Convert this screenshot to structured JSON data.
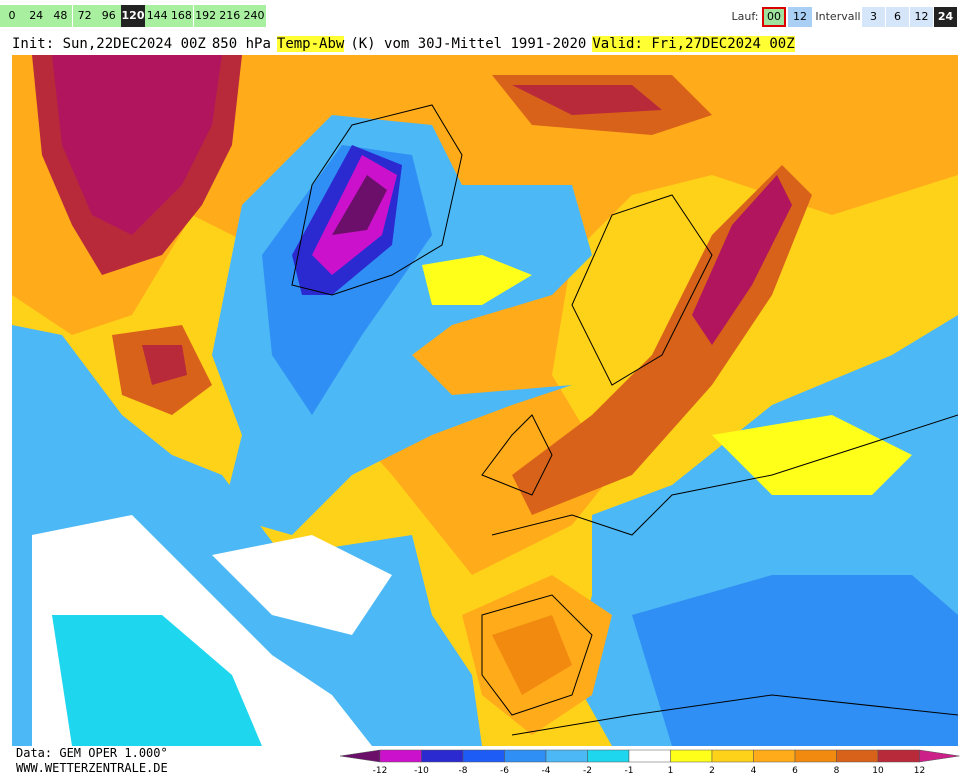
{
  "nav": {
    "hours": [
      "0",
      "24",
      "48",
      "72",
      "96",
      "120",
      "144",
      "168",
      "192",
      "216",
      "240"
    ],
    "selected_hour": 5
  },
  "run": {
    "label": "Lauf:",
    "options": [
      "00",
      "12"
    ],
    "selected": 0
  },
  "interval": {
    "label": "Intervall",
    "options": [
      "3",
      "6",
      "12",
      "24"
    ],
    "selected": 3
  },
  "header": {
    "init": "Init: Sun,22DEC2024 00Z",
    "level": "850 hPa",
    "variable": "Temp-Abw",
    "reference": "(K) vom 30J-Mittel 1991-2020",
    "valid": "Valid: Fri,27DEC2024 00Z"
  },
  "footer": {
    "data": "Data: GEM OPER 1.000°",
    "site": "WWW.WETTERZENTRALE.DE"
  },
  "legend": {
    "ticks": [
      "-12",
      "-10",
      "-8",
      "-6",
      "-4",
      "-2",
      "-1",
      "1",
      "2",
      "4",
      "6",
      "8",
      "10",
      "12"
    ],
    "colors": [
      "#6b0f6b",
      "#cc11cc",
      "#2a2ad0",
      "#1d5cf5",
      "#2f8ff5",
      "#4cb8f5",
      "#1ed6ee",
      "#ffffff",
      "#ffff1a",
      "#ffd21a",
      "#ffab1a",
      "#f28a10",
      "#d9621a",
      "#b82a3a",
      "#cc1f88"
    ]
  }
}
